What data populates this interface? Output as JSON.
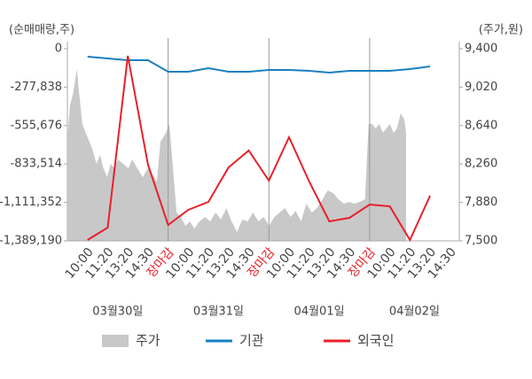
{
  "chart_data": {
    "type": "combo",
    "y_unit_label": "(순매매량,주)",
    "y2_unit_label": "(주가,원)",
    "categories": [
      "10:00",
      "11:20",
      "13:20",
      "14:30",
      "장마감",
      "10:00",
      "11:20",
      "13:20",
      "14:30",
      "장마감",
      "10:00",
      "11:20",
      "13:20",
      "14:30",
      "장마감",
      "10:00",
      "11:20",
      "13:20",
      "14:30"
    ],
    "category_colors": [
      null,
      null,
      null,
      null,
      "#e8202a",
      null,
      null,
      null,
      null,
      "#e8202a",
      null,
      null,
      null,
      null,
      "#e8202a",
      null,
      null,
      null,
      null
    ],
    "days": [
      "03월30일",
      "03월31일",
      "04월01일",
      "04월02일"
    ],
    "xlim": [
      -1,
      18.45
    ],
    "ylim": [
      -1389190,
      0
    ],
    "yticks": [
      0,
      {
        "value": -277838,
        "label": "-277,838"
      },
      {
        "value": -555676,
        "label": "-555,676"
      },
      {
        "value": -833514,
        "label": "-833,514"
      },
      {
        "value": -1111352,
        "label": "-1,111,352"
      },
      {
        "value": -1389190,
        "label": "-1,389,190"
      }
    ],
    "y2lim": [
      7500,
      9400
    ],
    "y2ticks": [
      {
        "value": 9400,
        "label": "9,400"
      },
      {
        "value": 9020,
        "label": "9,020"
      },
      {
        "value": 8640,
        "label": "8,640"
      },
      {
        "value": 8260,
        "label": "8,260"
      },
      {
        "value": 7880,
        "label": "7,880"
      },
      {
        "value": 7500,
        "label": "7,500"
      }
    ],
    "price": {
      "name": "주가",
      "color": "#c8c8c8",
      "axis": "y2",
      "x": [
        -0.97,
        -0.88,
        -0.71,
        -0.53,
        -0.44,
        -0.26,
        -0.09,
        0.09,
        0.26,
        0.44,
        0.62,
        0.79,
        0.97,
        1.15,
        1.32,
        1.5,
        1.77,
        2.03,
        2.21,
        2.47,
        2.74,
        3.0,
        3.18,
        3.44,
        3.62,
        3.89,
        4.06,
        4.24,
        4.42,
        4.64,
        4.86,
        5.08,
        5.3,
        5.56,
        5.83,
        6.09,
        6.36,
        6.62,
        6.89,
        7.15,
        7.42,
        7.68,
        7.95,
        8.21,
        8.48,
        8.74,
        9.01,
        9.27,
        9.54,
        9.8,
        10.07,
        10.33,
        10.6,
        10.86,
        11.13,
        11.39,
        11.66,
        11.92,
        12.19,
        12.45,
        12.72,
        12.98,
        13.25,
        13.51,
        13.77,
        13.95,
        14.13,
        14.3,
        14.48,
        14.66,
        14.83,
        15.01,
        15.19,
        15.36,
        15.54,
        15.72,
        15.81
      ],
      "values": [
        8568,
        8831,
        8962,
        9199,
        9006,
        8656,
        8568,
        8481,
        8393,
        8262,
        8349,
        8218,
        8130,
        8262,
        8218,
        8306,
        8262,
        8218,
        8306,
        8218,
        8130,
        8218,
        8174,
        8087,
        8481,
        8568,
        8656,
        8218,
        7780,
        7736,
        7649,
        7693,
        7622,
        7693,
        7736,
        7693,
        7780,
        7710,
        7824,
        7693,
        7587,
        7710,
        7693,
        7780,
        7693,
        7736,
        7649,
        7736,
        7780,
        7824,
        7736,
        7797,
        7693,
        7868,
        7780,
        7824,
        7911,
        7999,
        7973,
        7911,
        7868,
        7885,
        7868,
        7885,
        7911,
        8656,
        8656,
        8612,
        8656,
        8568,
        8612,
        8656,
        8568,
        8612,
        8761,
        8700,
        8568
      ]
    },
    "series": [
      {
        "name": "기관",
        "color": "#1a7fc1",
        "values": [
          -57600,
          -70400,
          -83200,
          -83200,
          -166400,
          -166400,
          -140800,
          -166400,
          -166400,
          -153600,
          -153600,
          -160000,
          -172800,
          -160000,
          -160000,
          -160000,
          -147200,
          -128000,
          null
        ]
      },
      {
        "name": "외국인",
        "color": "#e8202a",
        "values": [
          -1382800,
          -1293200,
          -51200,
          -838600,
          -1274000,
          -1165100,
          -1107500,
          -857800,
          -736200,
          -953900,
          -640200,
          -960300,
          -1248400,
          -1222700,
          -1126700,
          -1139500,
          -1382800,
          -1062700,
          null
        ]
      }
    ]
  }
}
